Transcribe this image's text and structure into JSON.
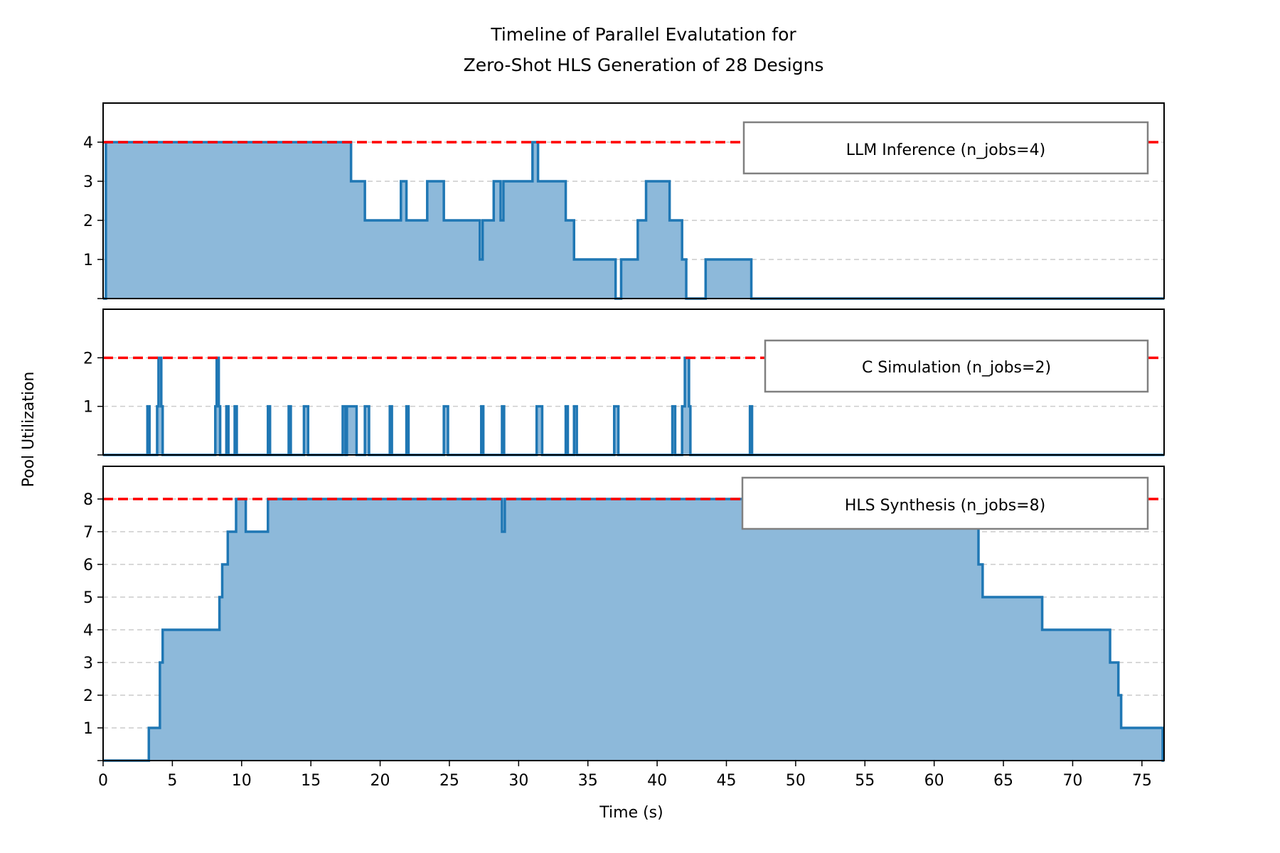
{
  "chart_data": {
    "type": "area",
    "title_lines": [
      "Timeline of Parallel Evalutation for",
      "Zero-Shot HLS Generation of 28 Designs"
    ],
    "xlabel": "Time (s)",
    "ylabel": "Pool Utilization",
    "xlim": [
      0,
      76.6
    ],
    "x_ticks": [
      0,
      5,
      10,
      15,
      20,
      25,
      30,
      35,
      40,
      45,
      50,
      55,
      60,
      65,
      70,
      75
    ],
    "colors": {
      "fill": "#8db9da",
      "line": "#1f77b4",
      "limit": "#ff0000",
      "grid": "#cccccc"
    },
    "panels": [
      {
        "name": "LLM Inference",
        "legend": "LLM Inference (n_jobs=4)",
        "n_jobs": 4,
        "ylim": [
          0,
          5
        ],
        "y_ticks": [
          1,
          2,
          3,
          4
        ],
        "steps": [
          [
            0,
            0
          ],
          [
            0.2,
            4
          ],
          [
            17.9,
            3
          ],
          [
            18.9,
            2
          ],
          [
            21.5,
            3
          ],
          [
            21.9,
            2
          ],
          [
            23.4,
            3
          ],
          [
            24.6,
            2
          ],
          [
            27.2,
            1
          ],
          [
            27.4,
            2
          ],
          [
            28.2,
            3
          ],
          [
            28.7,
            2
          ],
          [
            28.9,
            3
          ],
          [
            31.0,
            4
          ],
          [
            31.4,
            3
          ],
          [
            33.4,
            2
          ],
          [
            34.0,
            1
          ],
          [
            37.0,
            0
          ],
          [
            37.4,
            1
          ],
          [
            38.6,
            2
          ],
          [
            39.2,
            3
          ],
          [
            40.9,
            2
          ],
          [
            41.8,
            1
          ],
          [
            42.1,
            0
          ],
          [
            43.5,
            1
          ],
          [
            46.8,
            0
          ],
          [
            76.6,
            0
          ]
        ]
      },
      {
        "name": "C Simulation",
        "legend": "C Simulation (n_jobs=2)",
        "n_jobs": 2,
        "ylim": [
          0,
          3
        ],
        "y_ticks": [
          1,
          2
        ],
        "steps": [
          [
            0,
            0
          ],
          [
            3.2,
            1
          ],
          [
            3.35,
            0
          ],
          [
            3.9,
            1
          ],
          [
            4.0,
            2
          ],
          [
            4.2,
            1
          ],
          [
            4.3,
            0
          ],
          [
            8.1,
            1
          ],
          [
            8.2,
            2
          ],
          [
            8.35,
            1
          ],
          [
            8.45,
            0
          ],
          [
            8.9,
            1
          ],
          [
            9.05,
            0
          ],
          [
            9.5,
            1
          ],
          [
            9.65,
            0
          ],
          [
            11.9,
            1
          ],
          [
            12.05,
            0
          ],
          [
            13.4,
            1
          ],
          [
            13.55,
            0
          ],
          [
            14.5,
            1
          ],
          [
            14.8,
            0
          ],
          [
            17.3,
            1
          ],
          [
            17.5,
            0
          ],
          [
            17.6,
            1
          ],
          [
            18.3,
            0
          ],
          [
            18.9,
            1
          ],
          [
            19.2,
            0
          ],
          [
            20.7,
            1
          ],
          [
            20.85,
            0
          ],
          [
            21.9,
            1
          ],
          [
            22.05,
            0
          ],
          [
            24.6,
            1
          ],
          [
            24.9,
            0
          ],
          [
            27.3,
            1
          ],
          [
            27.45,
            0
          ],
          [
            28.8,
            1
          ],
          [
            28.95,
            0
          ],
          [
            31.3,
            1
          ],
          [
            31.7,
            0
          ],
          [
            33.4,
            1
          ],
          [
            33.55,
            0
          ],
          [
            34.0,
            1
          ],
          [
            34.2,
            0
          ],
          [
            36.9,
            1
          ],
          [
            37.2,
            0
          ],
          [
            41.1,
            1
          ],
          [
            41.3,
            0
          ],
          [
            41.8,
            1
          ],
          [
            42.0,
            2
          ],
          [
            42.3,
            1
          ],
          [
            42.4,
            0
          ],
          [
            46.7,
            1
          ],
          [
            46.85,
            0
          ],
          [
            76.6,
            0
          ]
        ]
      },
      {
        "name": "HLS Synthesis",
        "legend": "HLS Synthesis (n_jobs=8)",
        "n_jobs": 8,
        "ylim": [
          0,
          9
        ],
        "y_ticks": [
          1,
          2,
          3,
          4,
          5,
          6,
          7,
          8
        ],
        "steps": [
          [
            0,
            0
          ],
          [
            3.3,
            1
          ],
          [
            4.1,
            3
          ],
          [
            4.3,
            4
          ],
          [
            8.4,
            5
          ],
          [
            8.6,
            6
          ],
          [
            9.0,
            7
          ],
          [
            9.6,
            8
          ],
          [
            10.3,
            7
          ],
          [
            11.9,
            8
          ],
          [
            28.8,
            7
          ],
          [
            29.0,
            8
          ],
          [
            63.2,
            6
          ],
          [
            63.5,
            5
          ],
          [
            67.8,
            4
          ],
          [
            72.7,
            3
          ],
          [
            73.3,
            2
          ],
          [
            73.5,
            1
          ],
          [
            76.5,
            0
          ],
          [
            76.6,
            0
          ]
        ]
      }
    ]
  }
}
